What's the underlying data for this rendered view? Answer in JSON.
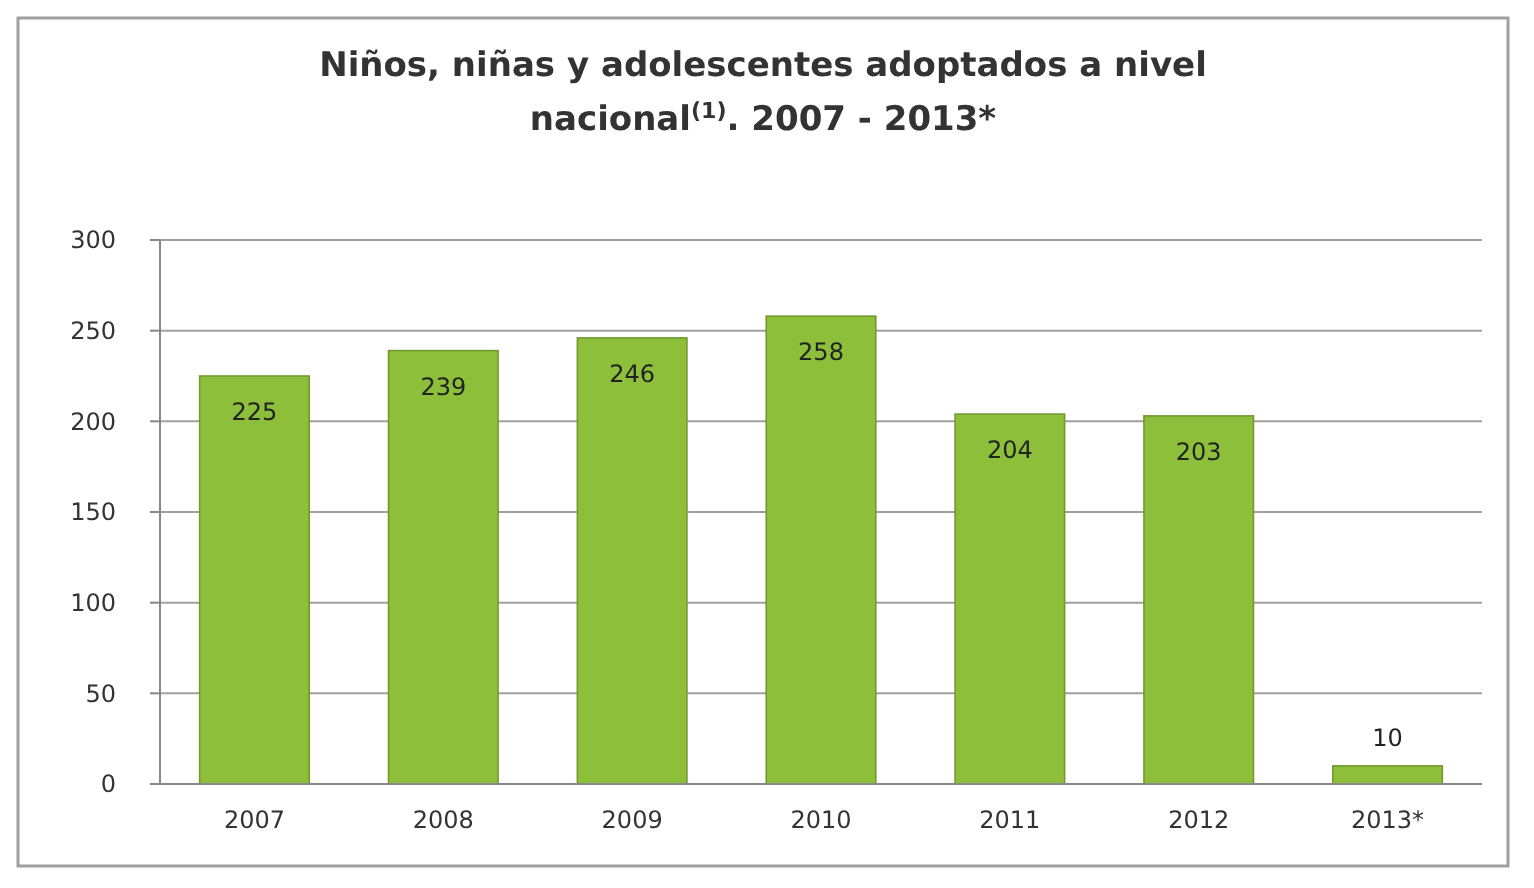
{
  "chart_data": {
    "type": "bar",
    "title": "Niños, niñas y adolescentes adoptados a nivel nacional$^{(1)}$. 2007 - 2013*",
    "categories": [
      "2007",
      "2008",
      "2009",
      "2010",
      "2011",
      "2012",
      "2013*"
    ],
    "values": [
      225,
      239,
      246,
      258,
      204,
      203,
      10
    ],
    "color": "#8dbf3a",
    "ylim": [
      0,
      300
    ],
    "yticks": [
      0,
      50,
      100,
      150,
      200,
      250,
      300
    ],
    "grid": "y",
    "data_labels": true
  }
}
